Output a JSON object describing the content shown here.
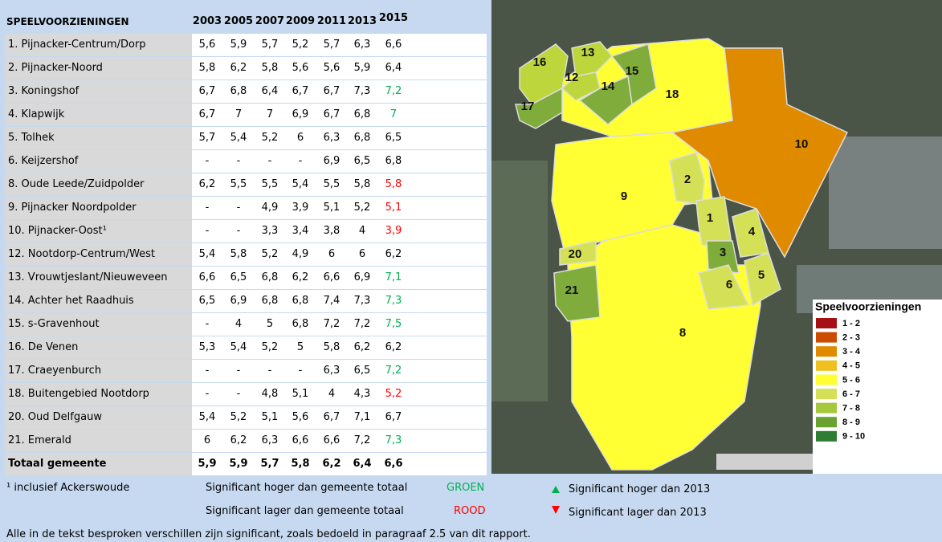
{
  "table": {
    "columns": [
      "SPEELVOORZIENINGEN",
      "2003",
      "2005",
      "2007",
      "2009",
      "2011",
      "2013",
      "2015"
    ],
    "rows": [
      {
        "label": "1. Pijnacker-Centrum/Dorp",
        "values": [
          "5,6",
          "5,9",
          "5,7",
          "5,2",
          "5,7",
          "6,3",
          "6,6"
        ]
      },
      {
        "label": "2. Pijnacker-Noord",
        "values": [
          "5,8",
          "6,2",
          "5,8",
          "5,6",
          "5,6",
          "5,9",
          "6,4"
        ]
      },
      {
        "label": "3. Koningshof",
        "values": [
          "6,7",
          "6,8",
          "6,4",
          "6,7",
          "6,7",
          "7,3",
          "7,2"
        ],
        "color_2015": "#00b050"
      },
      {
        "label": "4. Klapwijk",
        "values": [
          "6,7",
          "7",
          "7",
          "6,9",
          "6,7",
          "6,8",
          "7"
        ],
        "color_2015": "#00b050"
      },
      {
        "label": "5. Tolhek",
        "values": [
          "5,7",
          "5,4",
          "5,2",
          "6",
          "6,3",
          "6,8",
          "6,5"
        ]
      },
      {
        "label": "6. Keijzershof",
        "values": [
          "-",
          "-",
          "-",
          "-",
          "6,9",
          "6,5",
          "6,8"
        ]
      },
      {
        "label": "8. Oude Leede/Zuidpolder",
        "values": [
          "6,2",
          "5,5",
          "5,5",
          "5,4",
          "5,5",
          "5,8",
          "5,8"
        ],
        "color_2015": "#ff0000"
      },
      {
        "label": "9. Pijnacker Noordpolder",
        "values": [
          "-",
          "-",
          "4,9",
          "3,9",
          "5,1",
          "5,2",
          "5,1"
        ],
        "color_2015": "#ff0000"
      },
      {
        "label": "10. Pijnacker-Oost¹",
        "values": [
          "-",
          "-",
          "3,3",
          "3,4",
          "3,8",
          "4",
          "3,9"
        ],
        "color_2015": "#ff0000"
      },
      {
        "label": "12. Nootdorp-Centrum/West",
        "values": [
          "5,4",
          "5,8",
          "5,2",
          "4,9",
          "6",
          "6",
          "6,2"
        ]
      },
      {
        "label": "13. Vrouwtjeslant/Nieuweveen",
        "values": [
          "6,6",
          "6,5",
          "6,8",
          "6,2",
          "6,6",
          "6,9",
          "7,1"
        ],
        "color_2015": "#00b050"
      },
      {
        "label": "14. Achter het Raadhuis",
        "values": [
          "6,5",
          "6,9",
          "6,8",
          "6,8",
          "7,4",
          "7,3",
          "7,3"
        ],
        "color_2015": "#00b050"
      },
      {
        "label": "15. s-Gravenhout",
        "values": [
          "-",
          "4",
          "5",
          "6,8",
          "7,2",
          "7,2",
          "7,5"
        ],
        "color_2015": "#00b050"
      },
      {
        "label": "16. De Venen",
        "values": [
          "5,3",
          "5,4",
          "5,2",
          "5",
          "5,8",
          "6,2",
          "6,2"
        ]
      },
      {
        "label": "17. Craeyenburch",
        "values": [
          "-",
          "-",
          "-",
          "-",
          "6,3",
          "6,5",
          "7,2"
        ],
        "color_2015": "#00b050"
      },
      {
        "label": "18. Buitengebied Nootdorp",
        "values": [
          "-",
          "-",
          "4,8",
          "5,1",
          "4",
          "4,3",
          "5,2"
        ],
        "color_2015": "#ff0000"
      },
      {
        "label": "20. Oud Delfgauw",
        "values": [
          "5,4",
          "5,2",
          "5,1",
          "5,6",
          "6,7",
          "7,1",
          "6,7"
        ]
      },
      {
        "label": "21. Emerald",
        "values": [
          "6",
          "6,2",
          "6,3",
          "6,6",
          "6,6",
          "7,2",
          "7,3"
        ],
        "color_2015": "#00b050"
      }
    ],
    "total": {
      "label": "Totaal gemeente",
      "values": [
        "5,9",
        "5,9",
        "5,7",
        "5,8",
        "6,2",
        "6,4",
        "6,6"
      ]
    }
  },
  "footer": {
    "footnote": "¹ inclusief Ackerswoude",
    "higher_total": "Significant hoger dan gemeente totaal",
    "higher_total_word": "GROEN",
    "lower_total": "Significant lager dan gemeente totaal",
    "lower_total_word": "ROOD",
    "higher_2013": "Significant hoger dan 2013",
    "lower_2013": "Significant lager dan 2013",
    "note": "Alle in de tekst besproken verschillen zijn significant, zoals bedoeld in paragraaf 2.5 van dit rapport."
  },
  "map": {
    "regions": [
      {
        "label": "18",
        "color": "#ffff33"
      },
      {
        "label": "10",
        "color": "#e08a00"
      },
      {
        "label": "9",
        "color": "#ffff33"
      },
      {
        "label": "8",
        "color": "#ffff33"
      },
      {
        "label": "16",
        "color": "#bcd63c"
      },
      {
        "label": "13",
        "color": "#bcd63c"
      },
      {
        "label": "12",
        "color": "#bcd63c"
      },
      {
        "label": "14",
        "color": "#7fac3a"
      },
      {
        "label": "15",
        "color": "#7fac3a"
      },
      {
        "label": "17",
        "color": "#7fac3a"
      },
      {
        "label": "2",
        "color": "#d4e157"
      },
      {
        "label": "1",
        "color": "#d4e157"
      },
      {
        "label": "4",
        "color": "#d4e157"
      },
      {
        "label": "3",
        "color": "#7fac3a"
      },
      {
        "label": "20",
        "color": "#d4e157"
      },
      {
        "label": "6",
        "color": "#d4e157"
      },
      {
        "label": "5",
        "color": "#d4e157"
      },
      {
        "label": "21",
        "color": "#7fac3a"
      }
    ],
    "legend": {
      "title": "Speelvoorzieningen",
      "items": [
        {
          "label": "1 - 2",
          "color": "#a50f15"
        },
        {
          "label": "2 - 3",
          "color": "#cc4c02"
        },
        {
          "label": "3 - 4",
          "color": "#e08a00"
        },
        {
          "label": "4 - 5",
          "color": "#f0c020"
        },
        {
          "label": "5 - 6",
          "color": "#ffff33"
        },
        {
          "label": "6 - 7",
          "color": "#d4e157"
        },
        {
          "label": "7 - 8",
          "color": "#a6c83c"
        },
        {
          "label": "8 - 9",
          "color": "#6aa232"
        },
        {
          "label": "9 - 10",
          "color": "#2e7d32"
        }
      ]
    }
  }
}
